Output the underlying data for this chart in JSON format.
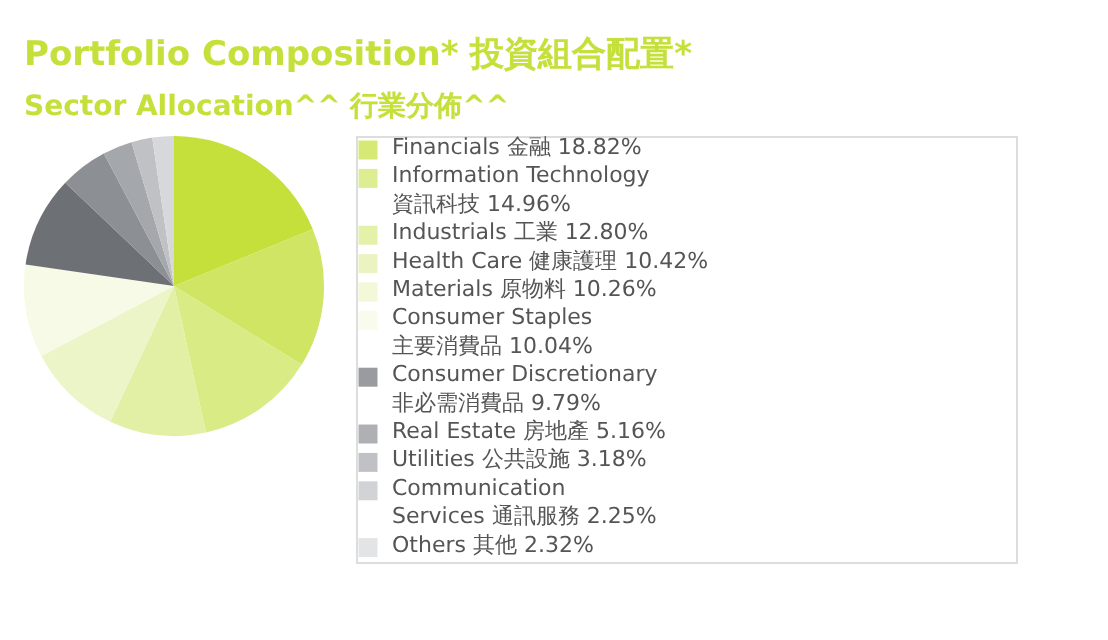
{
  "chart_data": {
    "type": "pie",
    "title": "Portfolio Composition* 投資組合配置*",
    "subtitle": "Sector Allocation^^ 行業分佈^^",
    "categories": [
      "Financials 金融",
      "Information Technology\n資訊科技",
      "Industrials 工業",
      "Health Care 健康護理",
      "Materials 原物料",
      "Consumer Staples\n主要消費品",
      "Consumer Discretionary\n非必需消費品",
      "Real Estate 房地產",
      "Utilities 公共設施",
      "Communication\nServices 通訊服務",
      "Others 其他"
    ],
    "values": [
      18.82,
      14.96,
      12.8,
      10.42,
      10.26,
      10.04,
      9.79,
      5.16,
      3.18,
      2.25,
      2.32
    ],
    "value_labels": [
      "18.82%",
      "14.96%",
      "12.80%",
      "10.42%",
      "10.26%",
      "10.04%",
      "9.79%",
      "5.16%",
      "3.18%",
      "2.25%",
      "2.32%"
    ],
    "colors": [
      "#c5e03a",
      "#cfe563",
      "#d8eb85",
      "#e2f0a6",
      "#ecf5c8",
      "#f6fae6",
      "#6d7075",
      "#8c8f94",
      "#a4a7ab",
      "#bfc1c4",
      "#d6d8db"
    ],
    "legend": "right"
  }
}
